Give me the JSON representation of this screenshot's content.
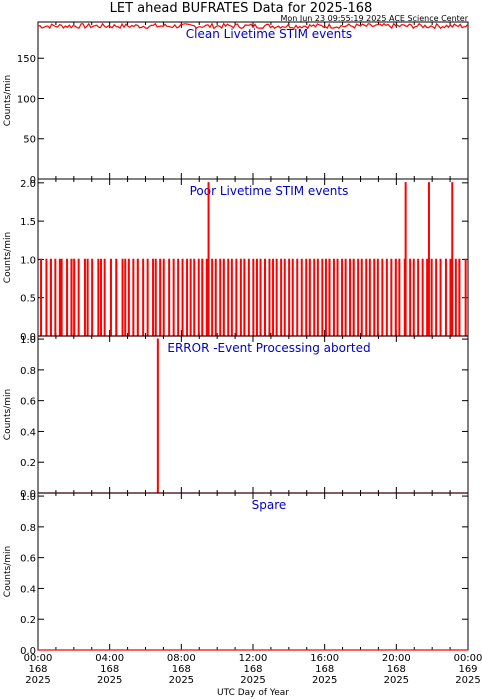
{
  "figure": {
    "title": "LET ahead BUFRATES Data for 2025-168",
    "timestamp": "Mon Jun 23 09:55:19 2025 ACE Science Center",
    "xlabel": "UTC Day of Year",
    "colors": {
      "trace": "#ff0000",
      "panel_title": "#0000cc",
      "axes": "#000000"
    }
  },
  "chart_data": [
    {
      "type": "line",
      "title": "Clean Livetime STIM events",
      "ylabel": "Counts/min",
      "ylim": [
        0,
        195
      ],
      "yticks": [
        "0",
        "50",
        "100",
        "150"
      ],
      "ytick_values": [
        0,
        50,
        100,
        150
      ],
      "xlim_hours": [
        0,
        24
      ],
      "series": [
        {
          "pattern": "band",
          "baseline": 190,
          "jitter": 3,
          "x_hours": [
            0,
            24
          ],
          "y": [
            190,
            190
          ]
        }
      ]
    },
    {
      "type": "line",
      "title": "Poor Livetime STIM events",
      "ylabel": "Counts/min",
      "ylim": [
        0,
        2.05
      ],
      "yticks": [
        "0.0",
        "0.5",
        "1.0",
        "1.5",
        "2.0"
      ],
      "ytick_values": [
        0,
        0.5,
        1.0,
        1.5,
        2.0
      ],
      "xlim_hours": [
        0,
        24
      ],
      "series": [
        {
          "pattern": "sparse_counts",
          "base": 0,
          "ones_hours": [
            0.15,
            0.45,
            0.7,
            0.95,
            1.2,
            1.3,
            1.6,
            1.85,
            2.0,
            2.25,
            2.6,
            2.75,
            3.0,
            3.35,
            3.5,
            3.7,
            4.05,
            4.35,
            4.7,
            4.85,
            5.05,
            5.3,
            5.55,
            5.85,
            6.1,
            6.4,
            6.55,
            6.8,
            7.0,
            7.3,
            7.55,
            7.8,
            8.05,
            8.3,
            8.5,
            8.7,
            8.95,
            9.15,
            9.4,
            9.7,
            9.9,
            10.15,
            10.35,
            10.6,
            10.8,
            11.05,
            11.3,
            11.5,
            11.75,
            12.0,
            12.2,
            12.4,
            12.65,
            12.9,
            13.1,
            13.3,
            13.55,
            13.75,
            14.0,
            14.2,
            14.45,
            14.7,
            14.95,
            15.15,
            15.4,
            15.6,
            15.85,
            16.05,
            16.25,
            16.5,
            16.7,
            16.95,
            17.15,
            17.4,
            17.6,
            17.85,
            18.05,
            18.3,
            18.5,
            18.75,
            18.95,
            19.2,
            19.45,
            19.7,
            19.95,
            20.15,
            20.45,
            20.75,
            20.95,
            21.2,
            21.45,
            21.7,
            21.95,
            22.2,
            22.45,
            22.75,
            23.0,
            23.3,
            23.5,
            23.85
          ],
          "twos_hours": [
            9.5,
            20.5,
            21.8,
            23.1
          ]
        }
      ]
    },
    {
      "type": "line",
      "title": "ERROR -Event Processing aborted",
      "ylabel": "Counts/min",
      "ylim": [
        0,
        1.02
      ],
      "yticks": [
        "0.0",
        "0.2",
        "0.4",
        "0.6",
        "0.8",
        "1.0"
      ],
      "ytick_values": [
        0,
        0.2,
        0.4,
        0.6,
        0.8,
        1.0
      ],
      "xlim_hours": [
        0,
        24
      ],
      "series": [
        {
          "pattern": "sparse_counts",
          "base": 0,
          "ones_hours": [
            6.67
          ],
          "twos_hours": []
        }
      ]
    },
    {
      "type": "line",
      "title": "Spare",
      "ylabel": "Counts/min",
      "ylim": [
        0,
        1.02
      ],
      "yticks": [
        "0.0",
        "0.2",
        "0.4",
        "0.6",
        "0.8",
        "1.0"
      ],
      "ytick_values": [
        0,
        0.2,
        0.4,
        0.6,
        0.8,
        1.0
      ],
      "xlim_hours": [
        0,
        24
      ],
      "series": [
        {
          "pattern": "sparse_counts",
          "base": 0,
          "ones_hours": [],
          "twos_hours": []
        }
      ]
    }
  ],
  "x_axis": {
    "tick_hours": [
      0,
      4,
      8,
      12,
      16,
      20,
      24
    ],
    "labels": [
      {
        "time": "00:00",
        "day": "168",
        "year": "2025"
      },
      {
        "time": "04:00",
        "day": "168",
        "year": "2025"
      },
      {
        "time": "08:00",
        "day": "168",
        "year": "2025"
      },
      {
        "time": "12:00",
        "day": "168",
        "year": "2025"
      },
      {
        "time": "16:00",
        "day": "168",
        "year": "2025"
      },
      {
        "time": "20:00",
        "day": "168",
        "year": "2025"
      },
      {
        "time": "00:00",
        "day": "169",
        "year": "2025"
      }
    ]
  }
}
